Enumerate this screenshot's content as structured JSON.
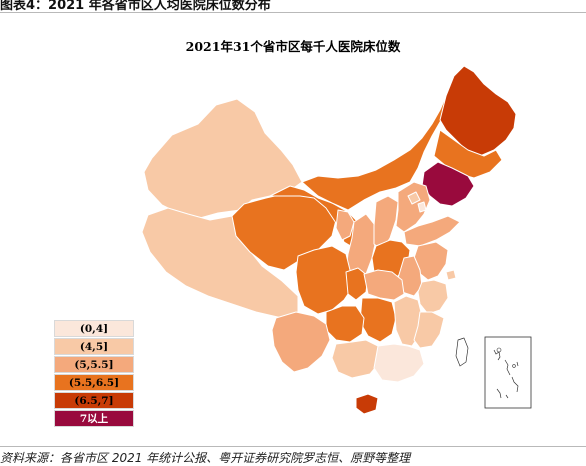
{
  "header": {
    "figure_label": "图表4：2021 年各省市区人均医院床位数分布"
  },
  "footer": {
    "source": "资料来源：各省市区 2021 年统计公报、粤开证券研究院罗志恒、原野等整理"
  },
  "chart_data": {
    "type": "choropleth",
    "title": "2021年31个省市区每千人医院床位数",
    "legend": {
      "placement": "bottom-left",
      "items": [
        {
          "label": "(0,4]",
          "color": "#fbe7db",
          "text_color": "#000000"
        },
        {
          "label": "(4,5]",
          "color": "#f8c9a6",
          "text_color": "#000000"
        },
        {
          "label": "(5,5.5]",
          "color": "#f4a97c",
          "text_color": "#000000"
        },
        {
          "label": "(5.5,6.5]",
          "color": "#e8731f",
          "text_color": "#000000"
        },
        {
          "label": "(6.5,7]",
          "color": "#c83b06",
          "text_color": "#000000"
        },
        {
          "label": "7以上",
          "color": "#990a3d",
          "text_color": "#ffffff"
        }
      ]
    },
    "regions": [
      {
        "name": "Xinjiang",
        "bin": 1
      },
      {
        "name": "Tibet",
        "bin": 1
      },
      {
        "name": "Qinghai",
        "bin": 3
      },
      {
        "name": "Gansu",
        "bin": 3
      },
      {
        "name": "Inner Mongolia",
        "bin": 3
      },
      {
        "name": "Heilongjiang",
        "bin": 4
      },
      {
        "name": "Jilin",
        "bin": 3
      },
      {
        "name": "Liaoning",
        "bin": 5
      },
      {
        "name": "Ningxia",
        "bin": 2
      },
      {
        "name": "Shaanxi",
        "bin": 2
      },
      {
        "name": "Shanxi",
        "bin": 2
      },
      {
        "name": "Hebei",
        "bin": 2
      },
      {
        "name": "Beijing",
        "bin": 1
      },
      {
        "name": "Tianjin",
        "bin": 0
      },
      {
        "name": "Shandong",
        "bin": 2
      },
      {
        "name": "Henan",
        "bin": 3
      },
      {
        "name": "Jiangsu",
        "bin": 2
      },
      {
        "name": "Anhui",
        "bin": 2
      },
      {
        "name": "Shanghai",
        "bin": 1
      },
      {
        "name": "Zhejiang",
        "bin": 1
      },
      {
        "name": "Sichuan",
        "bin": 3
      },
      {
        "name": "Chongqing",
        "bin": 3
      },
      {
        "name": "Hubei",
        "bin": 2
      },
      {
        "name": "Hunan",
        "bin": 3
      },
      {
        "name": "Jiangxi",
        "bin": 1
      },
      {
        "name": "Fujian",
        "bin": 1
      },
      {
        "name": "Guizhou",
        "bin": 3
      },
      {
        "name": "Yunnan",
        "bin": 2
      },
      {
        "name": "Guangxi",
        "bin": 1
      },
      {
        "name": "Guangdong",
        "bin": 0
      },
      {
        "name": "Hainan",
        "bin": 4
      },
      {
        "name": "Taiwan",
        "bin": -1
      }
    ]
  }
}
